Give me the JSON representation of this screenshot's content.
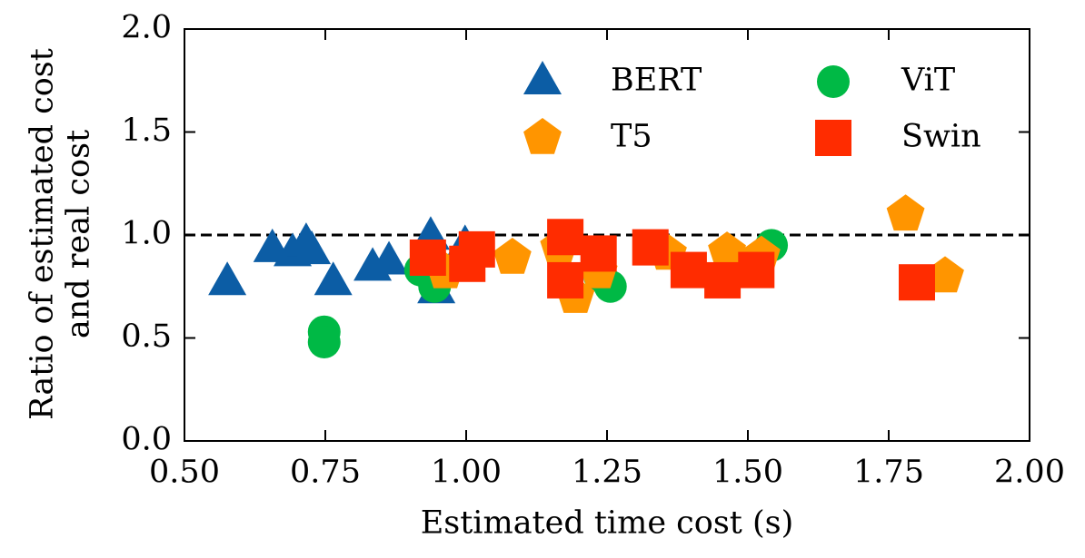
{
  "chart_data": {
    "type": "scatter",
    "xlabel": "Estimated time cost (s)",
    "ylabel": [
      "Ratio of estimated cost",
      "and real cost"
    ],
    "xlim": [
      0.5,
      2.0
    ],
    "ylim": [
      0.0,
      2.0
    ],
    "xticks": [
      {
        "value": 0.5,
        "label": "0.50"
      },
      {
        "value": 0.75,
        "label": "0.75"
      },
      {
        "value": 1.0,
        "label": "1.00"
      },
      {
        "value": 1.25,
        "label": "1.25"
      },
      {
        "value": 1.5,
        "label": "1.50"
      },
      {
        "value": 1.75,
        "label": "1.75"
      },
      {
        "value": 2.0,
        "label": "2.00"
      }
    ],
    "yticks": [
      {
        "value": 0.0,
        "label": "0.0"
      },
      {
        "value": 0.5,
        "label": "0.5"
      },
      {
        "value": 1.0,
        "label": "1.0"
      },
      {
        "value": 1.5,
        "label": "1.5"
      },
      {
        "value": 2.0,
        "label": "2.0"
      }
    ],
    "reference_line": 1,
    "legend": "upper right",
    "legend_columns": 2,
    "series": [
      {
        "name": "BERT",
        "color": "#0C5DA5",
        "marker": "triangle",
        "x": [
          0.576,
          0.656,
          0.692,
          0.716,
          0.726,
          0.764,
          0.834,
          0.863,
          0.937,
          0.947,
          0.998
        ],
        "y": [
          0.77,
          0.93,
          0.91,
          0.96,
          0.92,
          0.77,
          0.84,
          0.87,
          0.99,
          0.73,
          0.95
        ]
      },
      {
        "name": "ViT",
        "color": "#00B945",
        "marker": "circle",
        "x": [
          0.748,
          0.748,
          0.919,
          0.944,
          1.237,
          1.256,
          1.542
        ],
        "y": [
          0.53,
          0.48,
          0.83,
          0.75,
          0.8,
          0.75,
          0.95
        ]
      },
      {
        "name": "T5",
        "color": "#FF9500",
        "marker": "pentagon",
        "x": [
          0.963,
          1.082,
          1.165,
          1.194,
          1.235,
          1.358,
          1.463,
          1.524,
          1.78,
          1.85
        ],
        "y": [
          0.82,
          0.89,
          0.94,
          0.7,
          0.82,
          0.91,
          0.92,
          0.9,
          1.1,
          0.8
        ]
      },
      {
        "name": "Swin",
        "color": "#FF2C00",
        "marker": "square",
        "x": [
          0.932,
          1.002,
          1.019,
          1.176,
          1.176,
          1.235,
          1.327,
          1.395,
          1.455,
          1.515,
          1.8
        ],
        "y": [
          0.89,
          0.86,
          0.93,
          0.99,
          0.78,
          0.91,
          0.94,
          0.83,
          0.78,
          0.83,
          0.77
        ]
      }
    ]
  }
}
